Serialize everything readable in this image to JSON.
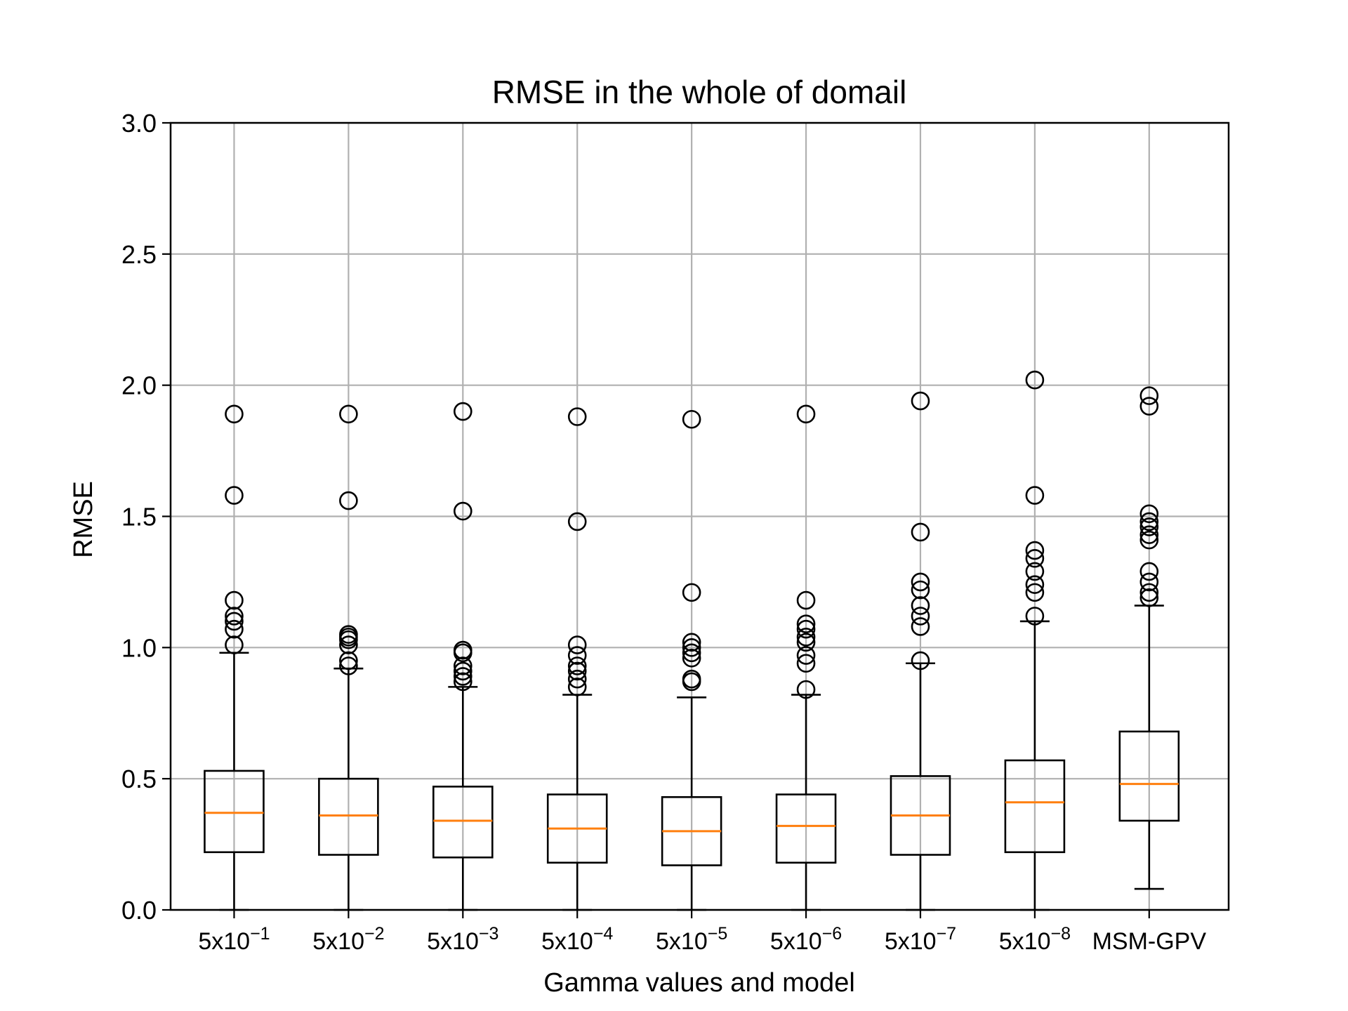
{
  "chart_data": {
    "type": "box",
    "title": "RMSE in the whole of domail",
    "xlabel": "Gamma values and model",
    "ylabel": "RMSE",
    "ylim": [
      0,
      3
    ],
    "yticks": [
      "0.0",
      "0.5",
      "1.0",
      "1.5",
      "2.0",
      "2.5",
      "3.0"
    ],
    "grid": true,
    "categories": [
      {
        "base": "5x10",
        "exp": "−1"
      },
      {
        "base": "5x10",
        "exp": "−2"
      },
      {
        "base": "5x10",
        "exp": "−3"
      },
      {
        "base": "5x10",
        "exp": "−4"
      },
      {
        "base": "5x10",
        "exp": "−5"
      },
      {
        "base": "5x10",
        "exp": "−6"
      },
      {
        "base": "5x10",
        "exp": "−7"
      },
      {
        "base": "5x10",
        "exp": "−8"
      },
      {
        "base": "MSM-GPV",
        "exp": ""
      }
    ],
    "boxes": [
      {
        "whislo": 0.0,
        "q1": 0.22,
        "med": 0.37,
        "q3": 0.53,
        "whishi": 0.98,
        "fliers": [
          1.01,
          1.07,
          1.1,
          1.12,
          1.18,
          1.58,
          1.89
        ]
      },
      {
        "whislo": 0.0,
        "q1": 0.21,
        "med": 0.36,
        "q3": 0.5,
        "whishi": 0.92,
        "fliers": [
          0.93,
          0.95,
          1.01,
          1.03,
          1.04,
          1.05,
          1.56,
          1.89
        ]
      },
      {
        "whislo": 0.0,
        "q1": 0.2,
        "med": 0.34,
        "q3": 0.47,
        "whishi": 0.85,
        "fliers": [
          0.87,
          0.89,
          0.91,
          0.93,
          0.98,
          0.99,
          1.52,
          1.9
        ]
      },
      {
        "whislo": 0.0,
        "q1": 0.18,
        "med": 0.31,
        "q3": 0.44,
        "whishi": 0.82,
        "fliers": [
          0.85,
          0.88,
          0.91,
          0.93,
          0.97,
          1.01,
          1.48,
          1.88
        ]
      },
      {
        "whislo": 0.0,
        "q1": 0.17,
        "med": 0.3,
        "q3": 0.43,
        "whishi": 0.81,
        "fliers": [
          0.87,
          0.88,
          0.96,
          0.98,
          1.0,
          1.02,
          1.21,
          1.87
        ]
      },
      {
        "whislo": 0.0,
        "q1": 0.18,
        "med": 0.32,
        "q3": 0.44,
        "whishi": 0.82,
        "fliers": [
          0.84,
          0.94,
          0.97,
          1.02,
          1.04,
          1.07,
          1.09,
          1.18,
          1.89
        ]
      },
      {
        "whislo": 0.0,
        "q1": 0.21,
        "med": 0.36,
        "q3": 0.51,
        "whishi": 0.94,
        "fliers": [
          0.95,
          1.08,
          1.12,
          1.16,
          1.22,
          1.25,
          1.44,
          1.94
        ]
      },
      {
        "whislo": 0.0,
        "q1": 0.22,
        "med": 0.41,
        "q3": 0.57,
        "whishi": 1.1,
        "fliers": [
          1.12,
          1.21,
          1.24,
          1.29,
          1.34,
          1.37,
          1.58,
          2.02
        ]
      },
      {
        "whislo": 0.08,
        "q1": 0.34,
        "med": 0.48,
        "q3": 0.68,
        "whishi": 1.16,
        "fliers": [
          1.19,
          1.21,
          1.25,
          1.29,
          1.41,
          1.43,
          1.46,
          1.48,
          1.51,
          1.92,
          1.96
        ]
      }
    ],
    "colors": {
      "box": "#000000",
      "median": "#ff7f0e",
      "grid": "#b0b0b0"
    }
  }
}
